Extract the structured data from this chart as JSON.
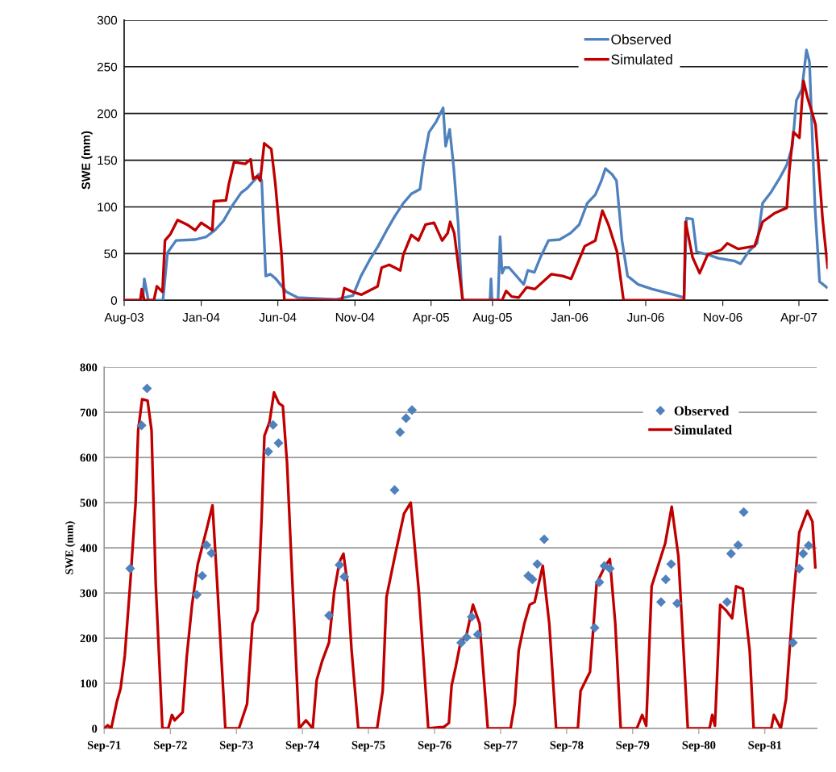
{
  "chart_data": [
    {
      "type": "line",
      "ylabel": "SWE (mm)",
      "ylim": [
        0,
        300
      ],
      "yticks": [
        0,
        50,
        100,
        150,
        200,
        250,
        300
      ],
      "xlim": [
        "2003-08-01",
        "2007-05-28"
      ],
      "xticks": [
        {
          "value": "2003-08-01",
          "label": "Aug-03"
        },
        {
          "value": "2004-01-01",
          "label": "Jan-04"
        },
        {
          "value": "2004-06-01",
          "label": "Jun-04"
        },
        {
          "value": "2004-11-01",
          "label": "Nov-04"
        },
        {
          "value": "2005-04-01",
          "label": "Apr-05"
        },
        {
          "value": "2005-08-01",
          "label": "Aug-05"
        },
        {
          "value": "2006-01-01",
          "label": "Jan-06"
        },
        {
          "value": "2006-06-01",
          "label": "Jun-06"
        },
        {
          "value": "2006-11-01",
          "label": "Nov-06"
        },
        {
          "value": "2007-04-01",
          "label": "Apr-07"
        }
      ],
      "grid": "y",
      "legend": "top right",
      "series": [
        {
          "name": "Observed",
          "color": "#4f81bd",
          "x": [
            "2003-08-01",
            "2003-09-07",
            "2003-09-10",
            "2003-09-18",
            "2003-10-17",
            "2003-10-26",
            "2003-11-12",
            "2003-12-20",
            "2004-01-11",
            "2004-01-28",
            "2004-02-14",
            "2004-03-01",
            "2004-03-20",
            "2004-04-01",
            "2004-04-18",
            "2004-04-24",
            "2004-04-30",
            "2004-05-08",
            "2004-05-17",
            "2004-05-28",
            "2004-06-18",
            "2004-07-10",
            "2004-09-25",
            "2004-10-28",
            "2004-11-13",
            "2004-11-30",
            "2004-12-17",
            "2005-01-03",
            "2005-01-19",
            "2005-02-05",
            "2005-02-21",
            "2005-03-10",
            "2005-03-18",
            "2005-03-28",
            "2005-04-11",
            "2005-04-25",
            "2005-04-30",
            "2005-05-08",
            "2005-05-16",
            "2005-05-25",
            "2005-06-02",
            "2005-07-27",
            "2005-07-29",
            "2005-07-31",
            "2005-08-12",
            "2005-08-16",
            "2005-08-20",
            "2005-08-25",
            "2005-09-03",
            "2005-10-02",
            "2005-10-10",
            "2005-10-23",
            "2005-11-04",
            "2005-11-20",
            "2005-12-12",
            "2006-01-03",
            "2006-01-20",
            "2006-02-05",
            "2006-02-21",
            "2006-03-05",
            "2006-03-13",
            "2006-03-26",
            "2006-04-04",
            "2006-04-15",
            "2006-04-26",
            "2006-05-17",
            "2006-06-14",
            "2006-07-27",
            "2006-08-16",
            "2006-08-21",
            "2006-09-02",
            "2006-09-10",
            "2006-10-02",
            "2006-10-23",
            "2006-11-25",
            "2006-12-06",
            "2006-12-22",
            "2007-01-08",
            "2007-01-19",
            "2007-02-05",
            "2007-02-21",
            "2007-03-08",
            "2007-03-19",
            "2007-03-27",
            "2007-04-07",
            "2007-04-16",
            "2007-04-22",
            "2007-04-27",
            "2007-05-03",
            "2007-05-12",
            "2007-05-26"
          ],
          "values": [
            0,
            0,
            23,
            0,
            0,
            51,
            64,
            65,
            68,
            75,
            85,
            100,
            115,
            120,
            130,
            135,
            128,
            26,
            28,
            23,
            9,
            3,
            1,
            5,
            26,
            43,
            58,
            75,
            90,
            104,
            114,
            119,
            151,
            180,
            191,
            206,
            165,
            183,
            142,
            81,
            0,
            0,
            23,
            0,
            0,
            68,
            29,
            35,
            35,
            17,
            32,
            30,
            46,
            64,
            65,
            72,
            81,
            104,
            113,
            128,
            141,
            135,
            128,
            64,
            26,
            17,
            12,
            6,
            3,
            88,
            87,
            52,
            49,
            45,
            42,
            39,
            52,
            61,
            104,
            116,
            130,
            145,
            165,
            214,
            226,
            268,
            255,
            183,
            99,
            20,
            14
          ]
        },
        {
          "name": "Simulated",
          "color": "#c00000",
          "x": [
            "2003-08-01",
            "2003-09-02",
            "2003-09-05",
            "2003-09-10",
            "2003-09-29",
            "2003-10-05",
            "2003-10-16",
            "2003-10-21",
            "2003-11-01",
            "2003-11-15",
            "2003-12-04",
            "2003-12-20",
            "2004-01-01",
            "2004-01-23",
            "2004-01-26",
            "2004-02-19",
            "2004-02-25",
            "2004-03-06",
            "2004-03-28",
            "2004-04-08",
            "2004-04-13",
            "2004-04-21",
            "2004-04-27",
            "2004-05-05",
            "2004-05-19",
            "2004-05-27",
            "2004-06-08",
            "2004-06-14",
            "2004-10-06",
            "2004-10-11",
            "2004-10-28",
            "2004-11-14",
            "2004-12-16",
            "2004-12-24",
            "2005-01-08",
            "2005-01-30",
            "2005-02-05",
            "2005-02-21",
            "2005-03-07",
            "2005-03-21",
            "2005-04-07",
            "2005-04-23",
            "2005-05-04",
            "2005-05-09",
            "2005-05-17",
            "2005-06-03",
            "2005-08-20",
            "2005-08-28",
            "2005-09-08",
            "2005-09-22",
            "2005-10-08",
            "2005-10-24",
            "2005-11-26",
            "2005-12-18",
            "2006-01-04",
            "2006-01-31",
            "2006-02-21",
            "2006-03-07",
            "2006-03-19",
            "2006-04-05",
            "2006-04-18",
            "2006-08-16",
            "2006-08-19",
            "2006-09-02",
            "2006-09-16",
            "2006-10-02",
            "2006-10-29",
            "2006-11-10",
            "2006-12-01",
            "2007-01-03",
            "2007-01-19",
            "2007-02-11",
            "2007-03-08",
            "2007-03-13",
            "2007-03-21",
            "2007-04-02",
            "2007-04-10",
            "2007-04-18",
            "2007-04-26",
            "2007-05-04",
            "2007-05-18",
            "2007-05-28"
          ],
          "values": [
            0,
            0,
            12,
            0,
            0,
            15,
            9,
            64,
            71,
            86,
            81,
            75,
            83,
            75,
            106,
            107,
            125,
            148,
            146,
            151,
            130,
            133,
            128,
            168,
            162,
            125,
            52,
            0,
            0,
            13,
            9,
            6,
            15,
            35,
            38,
            32,
            49,
            70,
            64,
            81,
            83,
            64,
            72,
            84,
            72,
            0,
            0,
            10,
            4,
            3,
            14,
            12,
            28,
            26,
            23,
            58,
            64,
            96,
            81,
            52,
            0,
            0,
            84,
            46,
            29,
            49,
            54,
            61,
            55,
            58,
            84,
            93,
            99,
            139,
            180,
            174,
            235,
            217,
            203,
            188,
            87,
            35
          ]
        }
      ]
    },
    {
      "type": "line",
      "ylabel": "SWE (mm)",
      "ylim": [
        0,
        800
      ],
      "yticks": [
        0,
        100,
        200,
        300,
        400,
        500,
        600,
        700,
        800
      ],
      "xlim": [
        "1971-09-01",
        "1982-06-15"
      ],
      "xticks": [
        {
          "value": "1971-09-01",
          "label": "Sep-71"
        },
        {
          "value": "1972-09-01",
          "label": "Sep-72"
        },
        {
          "value": "1973-09-01",
          "label": "Sep-73"
        },
        {
          "value": "1974-09-01",
          "label": "Sep-74"
        },
        {
          "value": "1975-09-01",
          "label": "Sep-75"
        },
        {
          "value": "1976-09-01",
          "label": "Sep-76"
        },
        {
          "value": "1977-09-01",
          "label": "Sep-77"
        },
        {
          "value": "1978-09-01",
          "label": "Sep-78"
        },
        {
          "value": "1979-09-01",
          "label": "Sep-79"
        },
        {
          "value": "1980-09-01",
          "label": "Sep-80"
        },
        {
          "value": "1981-09-01",
          "label": "Sep-81"
        }
      ],
      "grid": "y",
      "legend": "top right",
      "series": [
        {
          "name": "Observed",
          "type": "scatter",
          "marker": "diamond",
          "color": "#4f81bd",
          "x": [
            "1972-01-23",
            "1972-03-26",
            "1972-04-25",
            "1973-01-25",
            "1973-02-24",
            "1973-03-20",
            "1973-04-16",
            "1974-02-24",
            "1974-03-23",
            "1974-04-22",
            "1975-01-26",
            "1975-03-25",
            "1975-04-21",
            "1976-01-24",
            "1976-02-23",
            "1976-03-27",
            "1976-04-29",
            "1977-01-26",
            "1977-02-25",
            "1977-03-25",
            "1977-04-28",
            "1978-02-01",
            "1978-02-24",
            "1978-03-23",
            "1978-04-30",
            "1979-02-03",
            "1979-03-01",
            "1979-03-29",
            "1979-04-28",
            "1980-02-05",
            "1980-03-02",
            "1980-04-01",
            "1980-05-04",
            "1981-02-04",
            "1981-02-26",
            "1981-04-06",
            "1981-05-07",
            "1982-02-03",
            "1982-03-10",
            "1982-04-01",
            "1982-05-01"
          ],
          "values": [
            354,
            671,
            753,
            296,
            338,
            406,
            388,
            613,
            672,
            632,
            250,
            362,
            336,
            528,
            656,
            687,
            705,
            190,
            202,
            247,
            208,
            338,
            330,
            364,
            419,
            223,
            324,
            360,
            354,
            280,
            330,
            364,
            277,
            280,
            387,
            406,
            479,
            190,
            354,
            387,
            405
          ]
        },
        {
          "name": "Simulated",
          "color": "#c00000",
          "x": [
            "1971-09-01",
            "1971-09-20",
            "1971-10-10",
            "1971-11-10",
            "1971-12-01",
            "1971-12-24",
            "1972-01-23",
            "1972-02-22",
            "1972-03-07",
            "1972-03-29",
            "1972-04-28",
            "1972-05-20",
            "1972-06-12",
            "1972-07-19",
            "1972-08-20",
            "1972-09-10",
            "1972-09-25",
            "1972-11-08",
            "1972-12-01",
            "1972-12-30",
            "1973-01-30",
            "1973-03-20",
            "1973-04-22",
            "1973-05-18",
            "1973-07-02",
            "1973-09-15",
            "1973-10-30",
            "1973-11-29",
            "1973-12-28",
            "1974-01-19",
            "1974-02-03",
            "1974-03-03",
            "1974-03-28",
            "1974-04-24",
            "1974-05-16",
            "1974-06-08",
            "1974-07-08",
            "1974-08-14",
            "1974-09-21",
            "1974-10-28",
            "1974-11-19",
            "1974-12-19",
            "1975-01-26",
            "1975-02-24",
            "1975-03-25",
            "1975-04-16",
            "1975-05-08",
            "1975-05-31",
            "1975-07-07",
            "1975-10-19",
            "1975-11-19",
            "1975-12-10",
            "1976-01-25",
            "1976-03-16",
            "1976-04-22",
            "1976-06-06",
            "1976-07-28",
            "1976-10-03",
            "1976-10-21",
            "1976-11-19",
            "1976-12-04",
            "1976-12-27",
            "1977-01-19",
            "1977-02-25",
            "1977-04-01",
            "1977-05-08",
            "1977-06-22",
            "1977-10-26",
            "1977-11-18",
            "1977-12-10",
            "1978-01-10",
            "1978-02-09",
            "1978-03-08",
            "1978-04-22",
            "1978-05-28",
            "1978-07-05",
            "1978-11-02",
            "1978-11-17",
            "1979-01-08",
            "1979-02-14",
            "1979-03-29",
            "1979-04-28",
            "1979-05-28",
            "1979-06-27",
            "1979-09-24",
            "1979-10-24",
            "1979-11-15",
            "1979-12-15",
            "1980-01-22",
            "1980-02-28",
            "1980-04-04",
            "1980-05-11",
            "1980-07-02",
            "1980-10-30",
            "1980-11-14",
            "1980-11-29",
            "1980-12-28",
            "1981-01-28",
            "1981-03-04",
            "1981-03-26",
            "1981-05-02",
            "1981-06-09",
            "1981-07-01",
            "1981-10-06",
            "1981-10-21",
            "1981-11-28",
            "1981-12-27",
            "1982-02-03",
            "1982-03-10",
            "1982-04-24",
            "1982-05-22",
            "1982-06-07"
          ],
          "values": [
            0,
            7,
            0,
            59,
            89,
            161,
            321,
            500,
            660,
            729,
            726,
            660,
            321,
            0,
            0,
            30,
            18,
            36,
            161,
            274,
            363,
            440,
            494,
            321,
            0,
            0,
            54,
            232,
            262,
            470,
            648,
            678,
            744,
            720,
            714,
            589,
            321,
            0,
            18,
            0,
            107,
            149,
            190,
            303,
            369,
            387,
            321,
            173,
            0,
            0,
            83,
            291,
            381,
            476,
            500,
            303,
            0,
            3,
            3,
            12,
            95,
            137,
            184,
            208,
            274,
            232,
            0,
            0,
            54,
            173,
            232,
            274,
            280,
            360,
            232,
            0,
            0,
            83,
            125,
            321,
            357,
            375,
            232,
            0,
            0,
            30,
            6,
            315,
            363,
            410,
            491,
            381,
            0,
            0,
            30,
            6,
            274,
            262,
            244,
            315,
            309,
            173,
            0,
            0,
            30,
            0,
            65,
            274,
            434,
            482,
            458,
            357
          ]
        }
      ]
    }
  ]
}
